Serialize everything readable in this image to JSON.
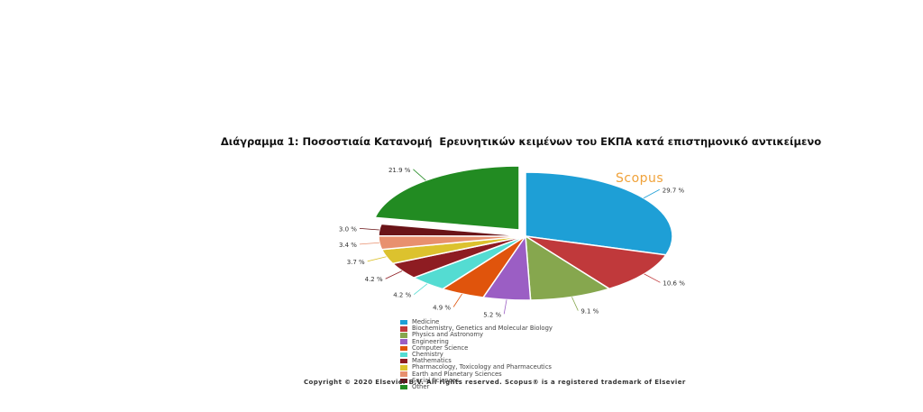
{
  "figure": {
    "caption": "Διάγραμμα 1: Ποσοστιαία Κατανομή  Ερευνητικών κειμένων του ΕΚΠΑ κατά επιστημονικό αντικείμενο",
    "brand": "Scopus",
    "copyright": "Copyright © 2020 Elsevier B.V. All rights reserved. Scopus® is a registered trademark of Elsevier"
  },
  "colors": {
    "brand": "#f0a23a"
  },
  "chart_data": {
    "type": "pie",
    "title": "",
    "legend_position": "bottom",
    "slices": [
      {
        "name": "Medicine",
        "value": 29.7,
        "label": "29.7 %",
        "color": "#1e9fd6"
      },
      {
        "name": "Biochemistry, Genetics and Molecular Biology",
        "value": 10.6,
        "label": "10.6 %",
        "color": "#c0393b"
      },
      {
        "name": "Physics and Astronomy",
        "value": 9.1,
        "label": "9.1 %",
        "color": "#86a74e"
      },
      {
        "name": "Engineering",
        "value": 5.2,
        "label": "5.2 %",
        "color": "#9b5ec4"
      },
      {
        "name": "Computer Science",
        "value": 4.9,
        "label": "4.9 %",
        "color": "#e0540c"
      },
      {
        "name": "Chemistry",
        "value": 4.2,
        "label": "4.2 %",
        "color": "#54dcd2"
      },
      {
        "name": "Mathematics",
        "value": 4.2,
        "label": "4.2 %",
        "color": "#8e1c22"
      },
      {
        "name": "Pharmacology, Toxicology and Pharmaceutics",
        "value": 3.7,
        "label": "3.7 %",
        "color": "#dcc22e"
      },
      {
        "name": "Earth and Planetary Sciences",
        "value": 3.4,
        "label": "3.4 %",
        "color": "#e8906e"
      },
      {
        "name": "Social Sciences",
        "value": 3.0,
        "label": "3.0 %",
        "color": "#6a1418"
      },
      {
        "name": "Other",
        "value": 21.9,
        "label": "21.9 %",
        "color": "#228b22"
      }
    ]
  }
}
